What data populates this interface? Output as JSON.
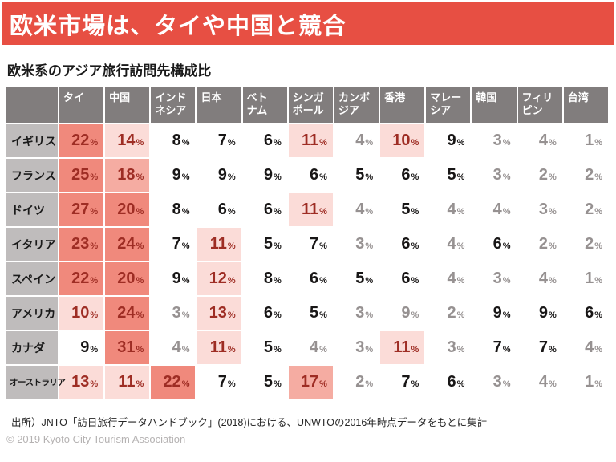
{
  "banner": {
    "title": "欧米市場は、タイや中国と競合"
  },
  "subtitle": "欧米系のアジア旅行訪問先構成比",
  "chart_data": {
    "type": "heatmap",
    "title": "欧米系のアジア旅行訪問先構成比",
    "unit": "%",
    "columns": [
      "タイ",
      "中国",
      "インドネシア",
      "日本",
      "ベトナム",
      "シンガポール",
      "カンボジア",
      "香港",
      "マレーシア",
      "韓国",
      "フィリピン",
      "台湾"
    ],
    "rows": [
      "イギリス",
      "フランス",
      "ドイツ",
      "イタリア",
      "スペイン",
      "アメリカ",
      "カナダ",
      "オーストラリア"
    ],
    "values": [
      [
        22,
        14,
        8,
        7,
        6,
        11,
        4,
        10,
        9,
        3,
        4,
        1
      ],
      [
        25,
        18,
        9,
        9,
        9,
        6,
        5,
        6,
        5,
        3,
        2,
        2
      ],
      [
        27,
        20,
        8,
        6,
        6,
        11,
        4,
        5,
        4,
        4,
        3,
        2
      ],
      [
        23,
        24,
        7,
        11,
        5,
        7,
        3,
        6,
        4,
        6,
        2,
        2
      ],
      [
        22,
        20,
        9,
        12,
        8,
        6,
        5,
        6,
        4,
        3,
        4,
        1
      ],
      [
        10,
        24,
        3,
        13,
        6,
        5,
        3,
        9,
        2,
        9,
        9,
        6
      ],
      [
        9,
        31,
        4,
        11,
        5,
        4,
        3,
        11,
        3,
        7,
        7,
        4
      ],
      [
        13,
        11,
        22,
        7,
        5,
        17,
        2,
        7,
        6,
        3,
        4,
        1
      ]
    ],
    "legend_position": "none",
    "annotations": "cells with 10%以上 shaded pink/salmon (darker = higher share), minor values shown in gray"
  },
  "table": {
    "unit": "%",
    "corner": "",
    "column_labels_display": [
      "タイ",
      "中国",
      "インド\nネシア",
      "日本",
      "ベト\nナム",
      "シンガ\nポール",
      "カンボ\nジア",
      "香港",
      "マレー\nシア",
      "韓国",
      "フィリ\nピン",
      "台湾"
    ],
    "tier_legend": {
      "3": "salmon bg ≈20%+",
      "2": "medium pink bg 15-19%",
      "1": "light pink bg 10-14%",
      "0": "black text",
      "-1": "gray text"
    },
    "tiers": [
      [
        3,
        1,
        0,
        0,
        0,
        1,
        -1,
        1,
        0,
        -1,
        -1,
        -1
      ],
      [
        3,
        2,
        0,
        0,
        0,
        0,
        0,
        0,
        0,
        -1,
        -1,
        -1
      ],
      [
        3,
        3,
        0,
        0,
        0,
        1,
        -1,
        0,
        -1,
        -1,
        -1,
        -1
      ],
      [
        3,
        3,
        0,
        1,
        0,
        0,
        -1,
        0,
        -1,
        0,
        -1,
        -1
      ],
      [
        3,
        3,
        0,
        1,
        0,
        0,
        0,
        0,
        -1,
        -1,
        -1,
        -1
      ],
      [
        1,
        3,
        -1,
        1,
        0,
        0,
        -1,
        -1,
        -1,
        0,
        0,
        0
      ],
      [
        0,
        3,
        -1,
        1,
        0,
        -1,
        -1,
        1,
        -1,
        0,
        0,
        -1
      ],
      [
        1,
        1,
        3,
        0,
        0,
        2,
        -1,
        0,
        0,
        -1,
        -1,
        -1
      ]
    ]
  },
  "footer": {
    "source": "出所）JNTO「訪日旅行データハンドブック」(2018)における、UNWTOの2016年時点データをもとに集計",
    "copyright": "© 2019 Kyoto City Tourism Association"
  },
  "colors": {
    "banner_bg": "#E74F43",
    "header_bg": "#817D7D",
    "row_label_bg": "#BFBCBC",
    "tier_high_bg": "#F0897C",
    "tier_mid_bg": "#F5ACA2",
    "tier_low_bg": "#FBDCD8",
    "highlight_text": "#9E2D24",
    "gray_text": "#969191",
    "black_text": "#181616",
    "copyright_text": "#B5B2B2"
  }
}
